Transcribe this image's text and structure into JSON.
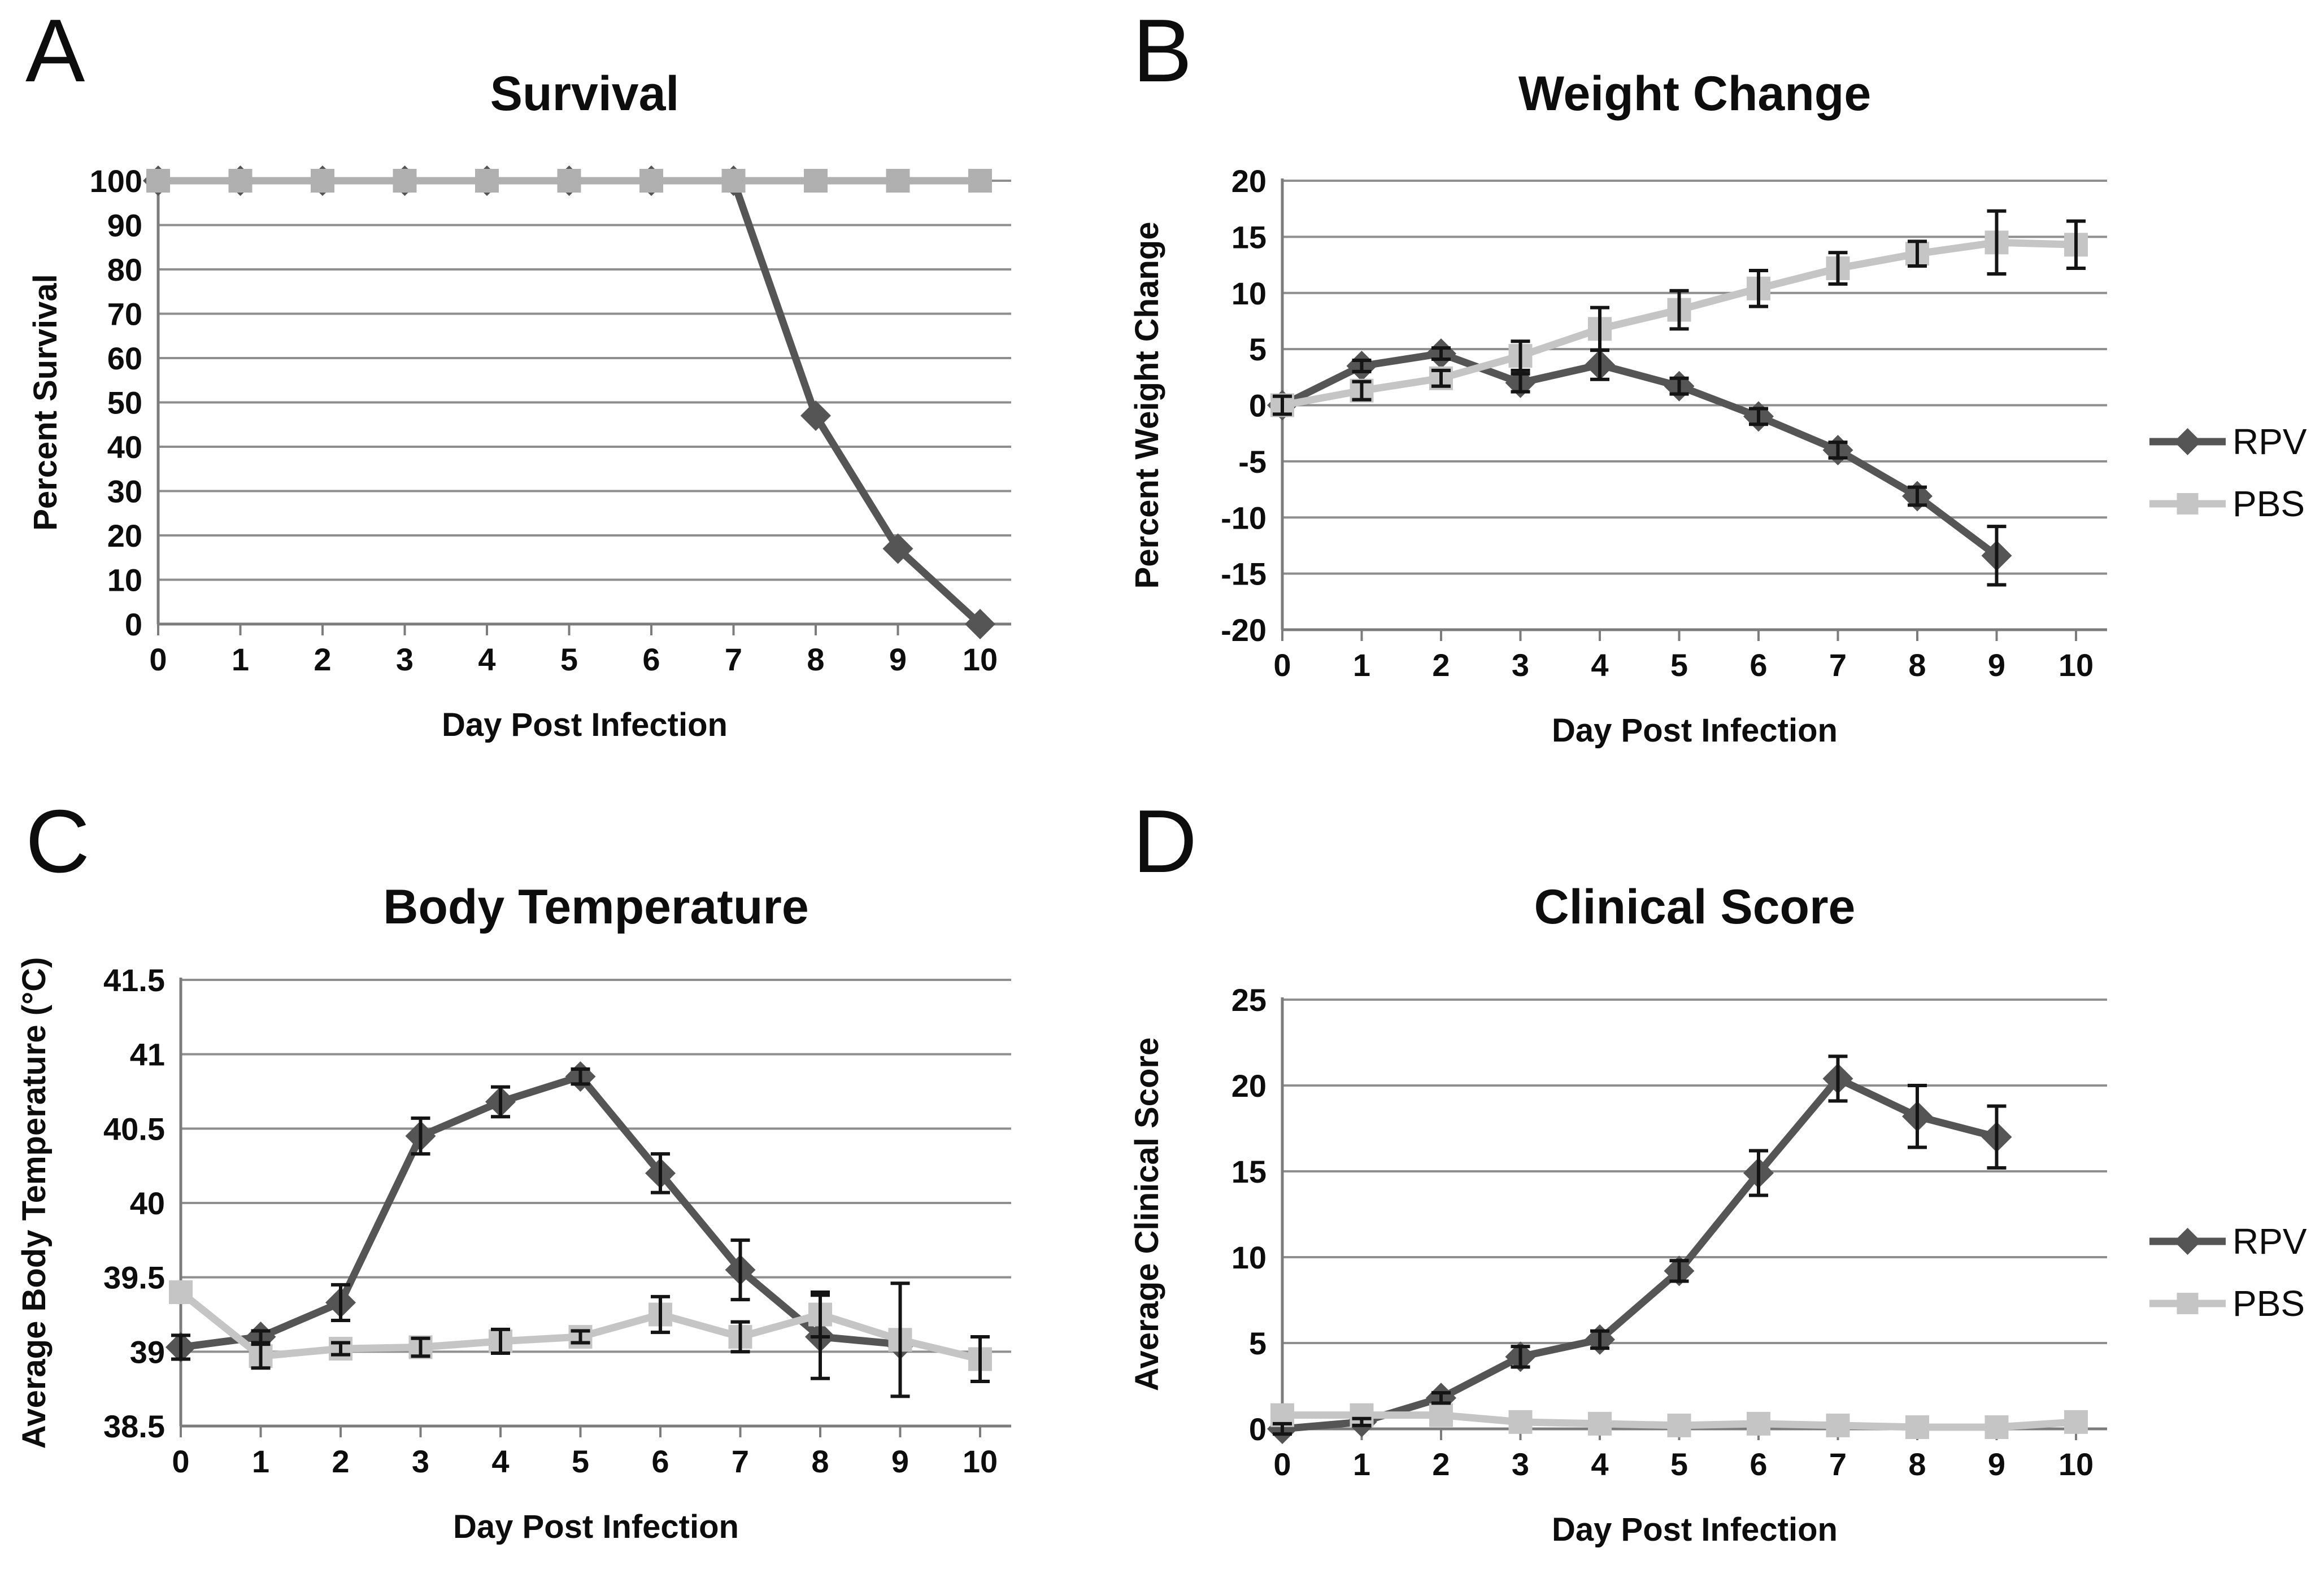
{
  "styles": {
    "background": "#ffffff",
    "gridline_color": "#8e8e8e",
    "axis_color": "#7c7c7c",
    "error_bar_color": "#141414",
    "text_color": "#0d0d0d",
    "rpv_color": "#555555",
    "pbs_color": "#c5c5c5"
  },
  "chart_data": [
    {
      "type": "line",
      "panel_label": "A",
      "title": "Survival",
      "xlabel": "Day Post Infection",
      "ylabel": "Percent Survival",
      "x_labels": [
        "0",
        "1",
        "2",
        "3",
        "4",
        "5",
        "6",
        "7",
        "8",
        "9",
        "10"
      ],
      "ylim": [
        0,
        100
      ],
      "yticks": [
        0,
        10,
        20,
        30,
        40,
        50,
        60,
        70,
        80,
        90,
        100
      ],
      "ytick_labels": [
        "0",
        "10",
        "20",
        "30",
        "40",
        "50",
        "60",
        "70",
        "80",
        "90",
        "100"
      ],
      "grid": true,
      "legend": null,
      "series": [
        {
          "name": "RPV",
          "marker": "diamond",
          "color": "#555555",
          "values": [
            100,
            100,
            100,
            100,
            100,
            100,
            100,
            100,
            47,
            17,
            0
          ],
          "errors": [
            0,
            0,
            0,
            0,
            0,
            0,
            0,
            0,
            0,
            0,
            0
          ]
        },
        {
          "name": "PBS",
          "marker": "square",
          "color": "#b0b0b0",
          "values": [
            100,
            100,
            100,
            100,
            100,
            100,
            100,
            100,
            100,
            100,
            100
          ],
          "errors": [
            0,
            0,
            0,
            0,
            0,
            0,
            0,
            0,
            0,
            0,
            0
          ]
        }
      ]
    },
    {
      "type": "line",
      "panel_label": "B",
      "title": "Weight Change",
      "xlabel": "Day Post Infection",
      "ylabel": "Percent Weight Change",
      "x_labels": [
        "0",
        "1",
        "2",
        "3",
        "4",
        "5",
        "6",
        "7",
        "8",
        "9",
        "10"
      ],
      "ylim": [
        -20,
        20
      ],
      "yticks": [
        -20,
        -15,
        -10,
        -5,
        0,
        5,
        10,
        15,
        20
      ],
      "ytick_labels": [
        "-20",
        "-15",
        "-10",
        "-5",
        "0",
        "5",
        "10",
        "15",
        "20"
      ],
      "grid": true,
      "legend": {
        "position": "right",
        "entries": [
          "RPV",
          "PBS"
        ]
      },
      "series": [
        {
          "name": "RPV",
          "marker": "diamond",
          "color": "#555555",
          "values": [
            0,
            3.5,
            4.6,
            2.0,
            3.6,
            1.7,
            -1.0,
            -4.0,
            -8.1,
            -13.4
          ],
          "errors": [
            0,
            0.5,
            0.5,
            0.8,
            1.3,
            0.7,
            0.7,
            0.7,
            0.8,
            2.6
          ]
        },
        {
          "name": "PBS",
          "marker": "square",
          "color": "#c5c5c5",
          "values": [
            0,
            1.3,
            2.4,
            4.4,
            6.8,
            8.5,
            10.4,
            12.2,
            13.5,
            14.5,
            14.3
          ],
          "errors": [
            0.8,
            0.8,
            0.7,
            1.3,
            1.9,
            1.7,
            1.6,
            1.4,
            1.1,
            2.8,
            2.1
          ]
        }
      ]
    },
    {
      "type": "line",
      "panel_label": "C",
      "title": "Body Temperature",
      "xlabel": "Day Post Infection",
      "ylabel": "Average Body Temperature (°C)",
      "x_labels": [
        "0",
        "1",
        "2",
        "3",
        "4",
        "5",
        "6",
        "7",
        "8",
        "9",
        "10"
      ],
      "ylim": [
        38.5,
        41.5
      ],
      "yticks": [
        38.5,
        39,
        39.5,
        40,
        40.5,
        41,
        41.5
      ],
      "ytick_labels": [
        "38.5",
        "39",
        "39.5",
        "40",
        "40.5",
        "41",
        "41.5"
      ],
      "grid": true,
      "legend": null,
      "series": [
        {
          "name": "RPV",
          "marker": "diamond",
          "color": "#555555",
          "values": [
            39.03,
            39.1,
            39.33,
            40.45,
            40.68,
            40.85,
            40.2,
            39.55,
            39.1,
            39.05
          ],
          "errors": [
            0.08,
            0.04,
            0.12,
            0.12,
            0.1,
            0.05,
            0.13,
            0.2,
            0.28,
            0
          ]
        },
        {
          "name": "PBS",
          "marker": "square",
          "color": "#c5c5c5",
          "values": [
            39.4,
            38.97,
            39.02,
            39.03,
            39.07,
            39.1,
            39.25,
            39.1,
            39.25,
            39.08,
            38.95
          ],
          "errors": [
            0,
            0.08,
            0.04,
            0.06,
            0.08,
            0.04,
            0.12,
            0.1,
            0.15,
            0.38,
            0.15
          ]
        }
      ]
    },
    {
      "type": "line",
      "panel_label": "D",
      "title": "Clinical Score",
      "xlabel": "Day Post Infection",
      "ylabel": "Average Clinical Score",
      "x_labels": [
        "0",
        "1",
        "2",
        "3",
        "4",
        "5",
        "6",
        "7",
        "8",
        "9",
        "10"
      ],
      "ylim": [
        0,
        25
      ],
      "yticks": [
        0,
        5,
        10,
        15,
        20,
        25
      ],
      "ytick_labels": [
        "0",
        "5",
        "10",
        "15",
        "20",
        "25"
      ],
      "grid": true,
      "legend": {
        "position": "right",
        "entries": [
          "RPV",
          "PBS"
        ]
      },
      "series": [
        {
          "name": "RPV",
          "marker": "diamond",
          "color": "#555555",
          "values": [
            0,
            0.4,
            1.8,
            4.2,
            5.2,
            9.2,
            14.9,
            20.4,
            18.2,
            17.0
          ],
          "errors": [
            0.3,
            0.2,
            0.3,
            0.6,
            0.5,
            0.6,
            1.3,
            1.3,
            1.8,
            1.8
          ]
        },
        {
          "name": "PBS",
          "marker": "square",
          "color": "#c5c5c5",
          "values": [
            0.8,
            0.8,
            0.8,
            0.4,
            0.3,
            0.2,
            0.3,
            0.2,
            0.1,
            0.1,
            0.4
          ],
          "errors": [
            0,
            0,
            0,
            0,
            0,
            0,
            0,
            0,
            0,
            0,
            0
          ]
        }
      ]
    }
  ]
}
